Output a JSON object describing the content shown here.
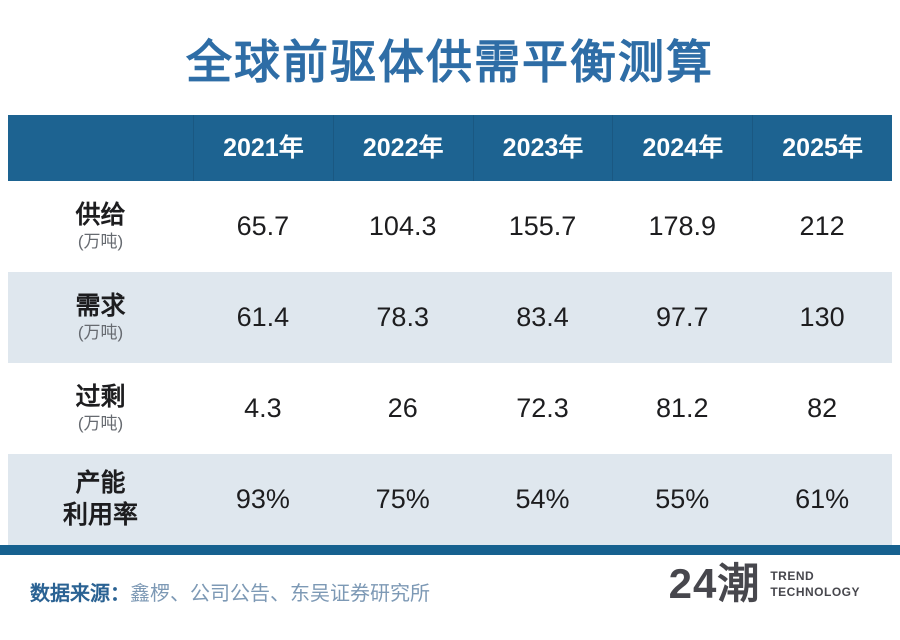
{
  "title": "全球前驱体供需平衡测算",
  "table": {
    "years": [
      "2021年",
      "2022年",
      "2023年",
      "2024年",
      "2025年"
    ],
    "rows": [
      {
        "label": "供给",
        "sublabel": "(万吨)",
        "values": [
          "65.7",
          "104.3",
          "155.7",
          "178.9",
          "212"
        ]
      },
      {
        "label": "需求",
        "sublabel": "(万吨)",
        "values": [
          "61.4",
          "78.3",
          "83.4",
          "97.7",
          "130"
        ]
      },
      {
        "label": "过剩",
        "sublabel": "(万吨)",
        "values": [
          "4.3",
          "26",
          "72.3",
          "81.2",
          "82"
        ]
      },
      {
        "label": "产能",
        "sublabel": "利用率",
        "values": [
          "93%",
          "75%",
          "54%",
          "55%",
          "61%"
        ]
      }
    ]
  },
  "footer": {
    "source_label": "数据来源：",
    "source_text": "鑫椤、公司公告、东吴证券研究所",
    "logo_text": "24潮",
    "logo_tagline_line1": "TREND",
    "logo_tagline_line2": "TECHNOLOGY"
  },
  "colors": {
    "title_blue": "#2e6da6",
    "header_blue": "#1d6391",
    "row_alt": "#dfe7ee",
    "bottom_bar_blue": "#16618f",
    "text_dark": "#1d1d1f",
    "unit_gray": "#666a70",
    "source_label_blue": "#2a6293",
    "source_text_blue": "#7d99b5",
    "logo_gray": "#47474d"
  },
  "chart_data": {
    "type": "table",
    "title": "全球前驱体供需平衡测算",
    "categories": [
      "2021年",
      "2022年",
      "2023年",
      "2024年",
      "2025年"
    ],
    "series": [
      {
        "name": "供给(万吨)",
        "values": [
          65.7,
          104.3,
          155.7,
          178.9,
          212
        ]
      },
      {
        "name": "需求(万吨)",
        "values": [
          61.4,
          78.3,
          83.4,
          97.7,
          130
        ]
      },
      {
        "name": "过剩(万吨)",
        "values": [
          4.3,
          26,
          72.3,
          81.2,
          82
        ]
      },
      {
        "name": "产能利用率",
        "values": [
          "93%",
          "75%",
          "54%",
          "55%",
          "61%"
        ]
      }
    ],
    "source": "鑫椤、公司公告、东吴证券研究所",
    "legend_position": "none",
    "grid": false
  }
}
